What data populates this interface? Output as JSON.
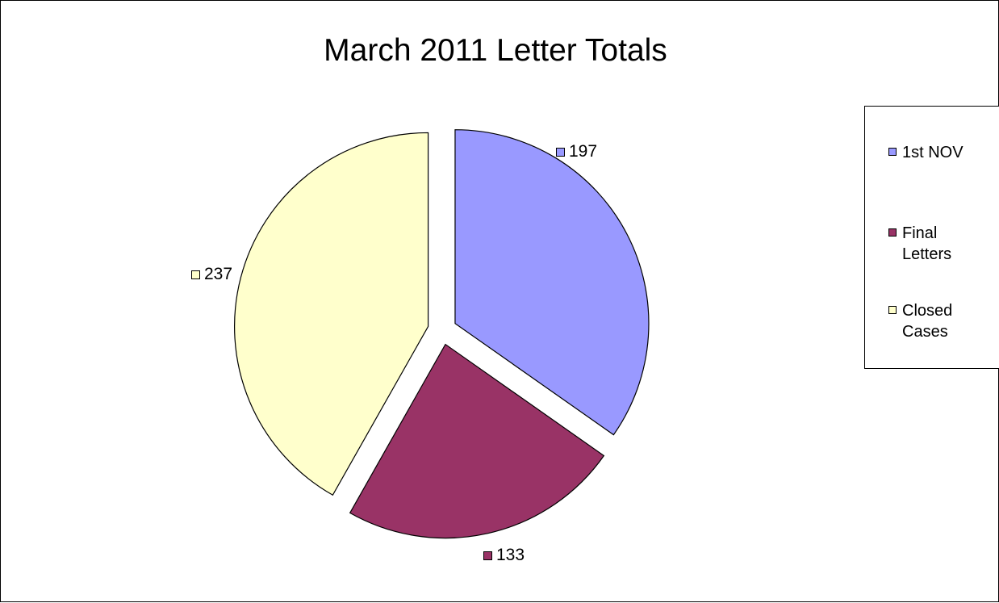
{
  "chart_data": {
    "type": "pie",
    "title": "March 2011 Letter Totals",
    "categories": [
      "1st NOV",
      "Final Letters",
      "Closed Cases"
    ],
    "legend_labels": [
      [
        "1st NOV"
      ],
      [
        "Final",
        "Letters"
      ],
      [
        "Closed",
        "Cases"
      ]
    ],
    "values": [
      197,
      133,
      237
    ],
    "data_labels": [
      "197",
      "133",
      "237"
    ],
    "colors": [
      "#9999ff",
      "#993366",
      "#ffffcc"
    ],
    "exploded": true,
    "legend": "right"
  }
}
